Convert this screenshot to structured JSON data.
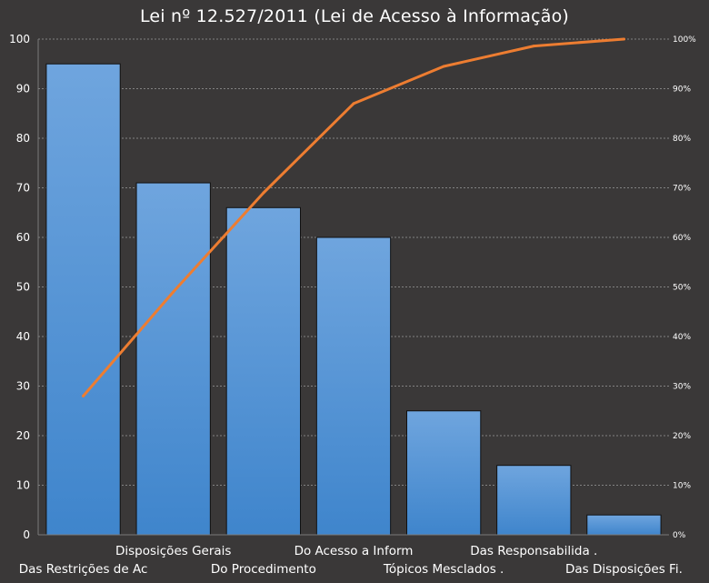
{
  "chart_data": {
    "type": "bar",
    "title": "Lei nº 12.527/2011  (Lei de Acesso à Informação)",
    "categories": [
      "Das Restrições de Ac",
      "Disposições Gerais",
      "Do Procedimento",
      "Do Acesso a Inform",
      "Tópicos Mesclados .",
      "Das Responsabilida .",
      "Das Disposições Fi."
    ],
    "series": [
      {
        "type": "bar",
        "axis": "left",
        "values": [
          95,
          71,
          66,
          60,
          25,
          14,
          4
        ]
      },
      {
        "type": "line",
        "axis": "right",
        "values": [
          0.28,
          0.49,
          0.69,
          0.87,
          0.945,
          0.986,
          1.0
        ]
      }
    ],
    "ylim": [
      0,
      100
    ],
    "yticks": [
      0,
      10,
      20,
      30,
      40,
      50,
      60,
      70,
      80,
      90,
      100
    ],
    "y2lim": [
      0,
      1
    ],
    "y2ticks": [
      "0%",
      "10%",
      "20%",
      "30%",
      "40%",
      "50%",
      "60%",
      "70%",
      "80%",
      "90%",
      "100%"
    ],
    "grid": true,
    "legend": "none",
    "colors": {
      "background": "#3a3838",
      "bar_top": "#6fa5de",
      "bar_bottom": "#3f85cc",
      "line": "#ed7d31",
      "grid": "#9a9a9a",
      "text": "#ffffff"
    }
  }
}
